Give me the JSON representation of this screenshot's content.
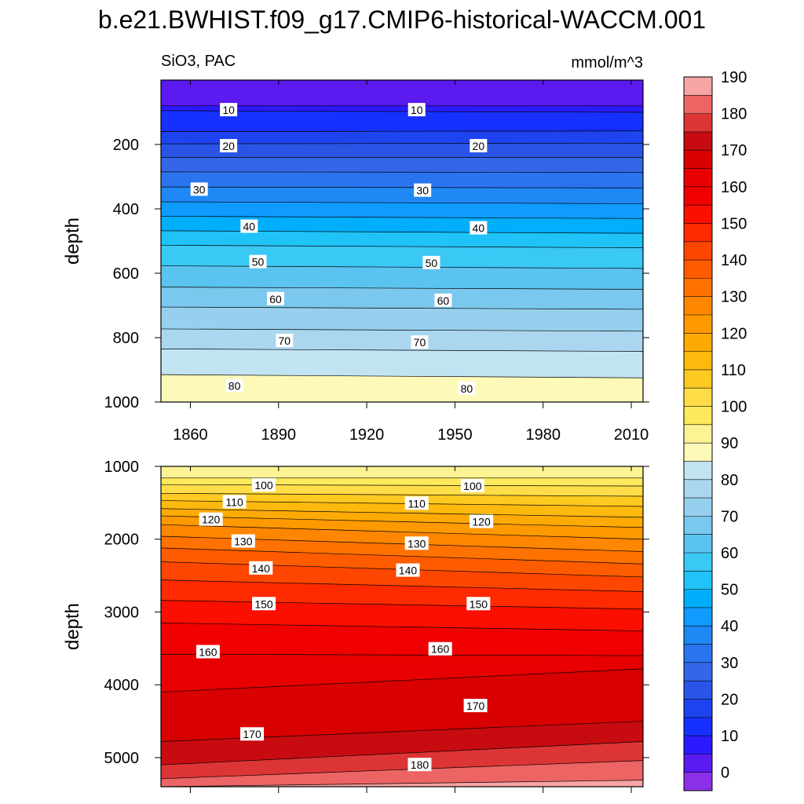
{
  "title": "b.e21.BWHIST.f09_g17.CMIP6-historical-WACCM.001",
  "subtitle_left": "SiO3, PAC",
  "units": "mmol/m^3",
  "colorbar": {
    "levels": [
      -5,
      0,
      5,
      10,
      15,
      20,
      25,
      30,
      35,
      40,
      45,
      50,
      55,
      60,
      65,
      70,
      75,
      80,
      85,
      90,
      95,
      100,
      105,
      110,
      115,
      120,
      125,
      130,
      135,
      140,
      145,
      150,
      155,
      160,
      165,
      170,
      175,
      180,
      185,
      190,
      195
    ],
    "labels": [
      "0",
      "10",
      "20",
      "30",
      "40",
      "50",
      "60",
      "70",
      "80",
      "90",
      "100",
      "110",
      "120",
      "130",
      "140",
      "150",
      "160",
      "170",
      "180",
      "190"
    ],
    "colors": [
      "#8b2fe8",
      "#5a1af0",
      "#2b1aff",
      "#1530ff",
      "#1e44f0",
      "#2a54e6",
      "#3566e8",
      "#2a74f0",
      "#1f88f5",
      "#0f9bff",
      "#00aefc",
      "#1fc3f7",
      "#3ac8f5",
      "#5bc3ef",
      "#7ac8ee",
      "#97d0ee",
      "#aad7ef",
      "#c2e4f2",
      "#fdf9b8",
      "#fdf394",
      "#fee95c",
      "#fedd48",
      "#fec920",
      "#fdb90d",
      "#feaa04",
      "#fe9900",
      "#ff8600",
      "#ff7200",
      "#ff5c00",
      "#ff4600",
      "#ff2a00",
      "#fa0f00",
      "#f00000",
      "#e80000",
      "#d80000",
      "#c70b10",
      "#dd3535",
      "#ec6464",
      "#f7a4a4"
    ]
  },
  "chart_data": [
    {
      "type": "contour",
      "panel": "upper",
      "xlabel": "",
      "ylabel": "depth",
      "xlim": [
        1850,
        2014
      ],
      "ylim": [
        1000,
        0
      ],
      "x_ticks": [
        1860,
        1890,
        1920,
        1950,
        1980,
        2010
      ],
      "x_tick_labels": [
        "1860",
        "1890",
        "1920",
        "1950",
        "1980",
        "2010"
      ],
      "y_ticks": [
        200,
        400,
        600,
        800,
        1000
      ],
      "y_tick_labels": [
        "200",
        "400",
        "600",
        "800",
        "1000"
      ],
      "contours": [
        {
          "level": 5,
          "depth_start": 80,
          "depth_end": 80
        },
        {
          "level": 10,
          "depth_start": 95,
          "depth_end": 100
        },
        {
          "level": 15,
          "depth_start": 160,
          "depth_end": 158
        },
        {
          "level": 20,
          "depth_start": 198,
          "depth_end": 196
        },
        {
          "level": 25,
          "depth_start": 240,
          "depth_end": 240
        },
        {
          "level": 30,
          "depth_start": 285,
          "depth_end": 287
        },
        {
          "level": 35,
          "depth_start": 332,
          "depth_end": 335
        },
        {
          "level": 40,
          "depth_start": 378,
          "depth_end": 384
        },
        {
          "level": 45,
          "depth_start": 423,
          "depth_end": 430
        },
        {
          "level": 50,
          "depth_start": 468,
          "depth_end": 476
        },
        {
          "level": 55,
          "depth_start": 513,
          "depth_end": 521
        },
        {
          "level": 60,
          "depth_start": 577,
          "depth_end": 585
        },
        {
          "level": 65,
          "depth_start": 643,
          "depth_end": 650
        },
        {
          "level": 70,
          "depth_start": 705,
          "depth_end": 712
        },
        {
          "level": 75,
          "depth_start": 773,
          "depth_end": 780
        },
        {
          "level": 80,
          "depth_start": 835,
          "depth_end": 843
        },
        {
          "level": 85,
          "depth_start": 915,
          "depth_end": 925
        }
      ],
      "contour_labels": [
        {
          "text": "10",
          "year": 1873,
          "depth": 93
        },
        {
          "text": "10",
          "year": 1937,
          "depth": 93
        },
        {
          "text": "20",
          "year": 1873,
          "depth": 205
        },
        {
          "text": "20",
          "year": 1958,
          "depth": 205
        },
        {
          "text": "30",
          "year": 1863,
          "depth": 340
        },
        {
          "text": "30",
          "year": 1939,
          "depth": 343
        },
        {
          "text": "40",
          "year": 1880,
          "depth": 455
        },
        {
          "text": "40",
          "year": 1958,
          "depth": 460
        },
        {
          "text": "50",
          "year": 1883,
          "depth": 565
        },
        {
          "text": "50",
          "year": 1942,
          "depth": 568
        },
        {
          "text": "60",
          "year": 1889,
          "depth": 680
        },
        {
          "text": "60",
          "year": 1946,
          "depth": 685
        },
        {
          "text": "70",
          "year": 1892,
          "depth": 810
        },
        {
          "text": "70",
          "year": 1938,
          "depth": 815
        },
        {
          "text": "80",
          "year": 1875,
          "depth": 950
        },
        {
          "text": "80",
          "year": 1954,
          "depth": 958
        }
      ]
    },
    {
      "type": "contour",
      "panel": "lower",
      "xlabel": "",
      "ylabel": "depth",
      "xlim": [
        1850,
        2014
      ],
      "ylim": [
        5400,
        1000
      ],
      "x_ticks": [
        1860,
        1890,
        1920,
        1950,
        1980,
        2010
      ],
      "y_ticks": [
        1000,
        2000,
        3000,
        4000,
        5000
      ],
      "y_tick_labels": [
        "1000",
        "2000",
        "3000",
        "4000",
        "5000"
      ],
      "contours": [
        {
          "level": 90,
          "depth_start": 1000,
          "depth_end": 1000
        },
        {
          "level": 95,
          "depth_start": 1160,
          "depth_end": 1160
        },
        {
          "level": 100,
          "depth_start": 1250,
          "depth_end": 1270
        },
        {
          "level": 105,
          "depth_start": 1370,
          "depth_end": 1410
        },
        {
          "level": 110,
          "depth_start": 1470,
          "depth_end": 1550
        },
        {
          "level": 115,
          "depth_start": 1580,
          "depth_end": 1700
        },
        {
          "level": 120,
          "depth_start": 1680,
          "depth_end": 1840
        },
        {
          "level": 125,
          "depth_start": 1800,
          "depth_end": 2000
        },
        {
          "level": 130,
          "depth_start": 1960,
          "depth_end": 2170
        },
        {
          "level": 135,
          "depth_start": 2120,
          "depth_end": 2340
        },
        {
          "level": 140,
          "depth_start": 2310,
          "depth_end": 2520
        },
        {
          "level": 145,
          "depth_start": 2560,
          "depth_end": 2720
        },
        {
          "level": 150,
          "depth_start": 2840,
          "depth_end": 2960
        },
        {
          "level": 155,
          "depth_start": 3150,
          "depth_end": 3260
        },
        {
          "level": 160,
          "depth_start": 3580,
          "depth_end": 3600
        },
        {
          "level": 165,
          "depth_start": 4100,
          "depth_end": 3780
        },
        {
          "level": 170,
          "depth_start": 4780,
          "depth_end": 4500
        },
        {
          "level": 175,
          "depth_start": 5100,
          "depth_end": 4780
        },
        {
          "level": 180,
          "depth_start": 5290,
          "depth_end": 5040
        },
        {
          "level": 185,
          "depth_start": 5400,
          "depth_end": 5310
        }
      ],
      "contour_labels": [
        {
          "text": "100",
          "year": 1885,
          "depth": 1260
        },
        {
          "text": "100",
          "year": 1956,
          "depth": 1270
        },
        {
          "text": "110",
          "year": 1875,
          "depth": 1490
        },
        {
          "text": "110",
          "year": 1937,
          "depth": 1510
        },
        {
          "text": "120",
          "year": 1867,
          "depth": 1730
        },
        {
          "text": "120",
          "year": 1959,
          "depth": 1760
        },
        {
          "text": "130",
          "year": 1878,
          "depth": 2030
        },
        {
          "text": "130",
          "year": 1937,
          "depth": 2060
        },
        {
          "text": "140",
          "year": 1884,
          "depth": 2400
        },
        {
          "text": "140",
          "year": 1934,
          "depth": 2430
        },
        {
          "text": "150",
          "year": 1885,
          "depth": 2890
        },
        {
          "text": "150",
          "year": 1958,
          "depth": 2890
        },
        {
          "text": "160",
          "year": 1866,
          "depth": 3550
        },
        {
          "text": "160",
          "year": 1945,
          "depth": 3510
        },
        {
          "text": "170",
          "year": 1881,
          "depth": 4680
        },
        {
          "text": "170",
          "year": 1957,
          "depth": 4290
        },
        {
          "text": "180",
          "year": 1938,
          "depth": 5100
        }
      ]
    }
  ]
}
